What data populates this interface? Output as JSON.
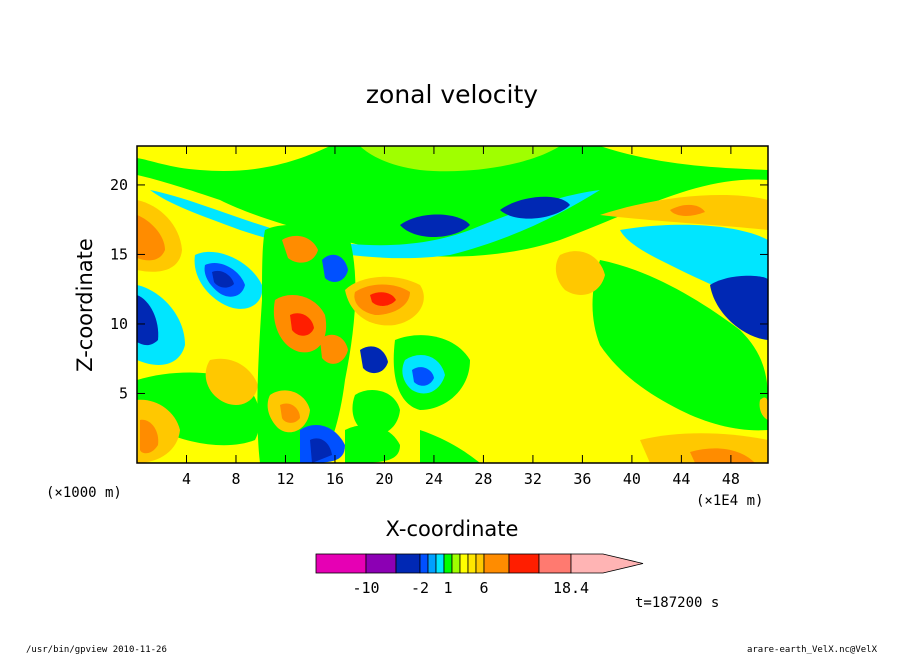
{
  "chart_data": {
    "type": "heatmap",
    "title": "zonal velocity",
    "xlabel": "X-coordinate",
    "ylabel": "Z-coordinate",
    "x_unit": "(×1E4 m)",
    "y_unit": "(×1000 m)",
    "x_ticks": [
      4,
      8,
      12,
      16,
      20,
      24,
      28,
      32,
      36,
      40,
      44,
      48
    ],
    "y_ticks": [
      5,
      10,
      15,
      20
    ],
    "xlim": [
      0,
      51
    ],
    "ylim": [
      0,
      22.8
    ],
    "color_levels": [
      -14,
      -10,
      -6,
      -2,
      -1,
      0,
      1,
      2,
      3,
      4,
      5,
      6,
      10,
      14,
      18.4
    ],
    "colorbar_labels": [
      "-10",
      "-2",
      "1",
      "6",
      "18.4"
    ],
    "colorbar_colors": [
      "#e600b4",
      "#8c00b4",
      "#0028b4",
      "#0050ff",
      "#00a0ff",
      "#00e6ff",
      "#00ff00",
      "#a0ff00",
      "#ffff00",
      "#ffe600",
      "#ffc800",
      "#ff8c00",
      "#ff1e00",
      "#ff7a70",
      "#ffb4b4"
    ],
    "time_label": "t=187200 s",
    "footer_left": "/usr/bin/gpview  2010-11-26",
    "footer_right": "arare-earth_VelX.nc@VelX"
  }
}
